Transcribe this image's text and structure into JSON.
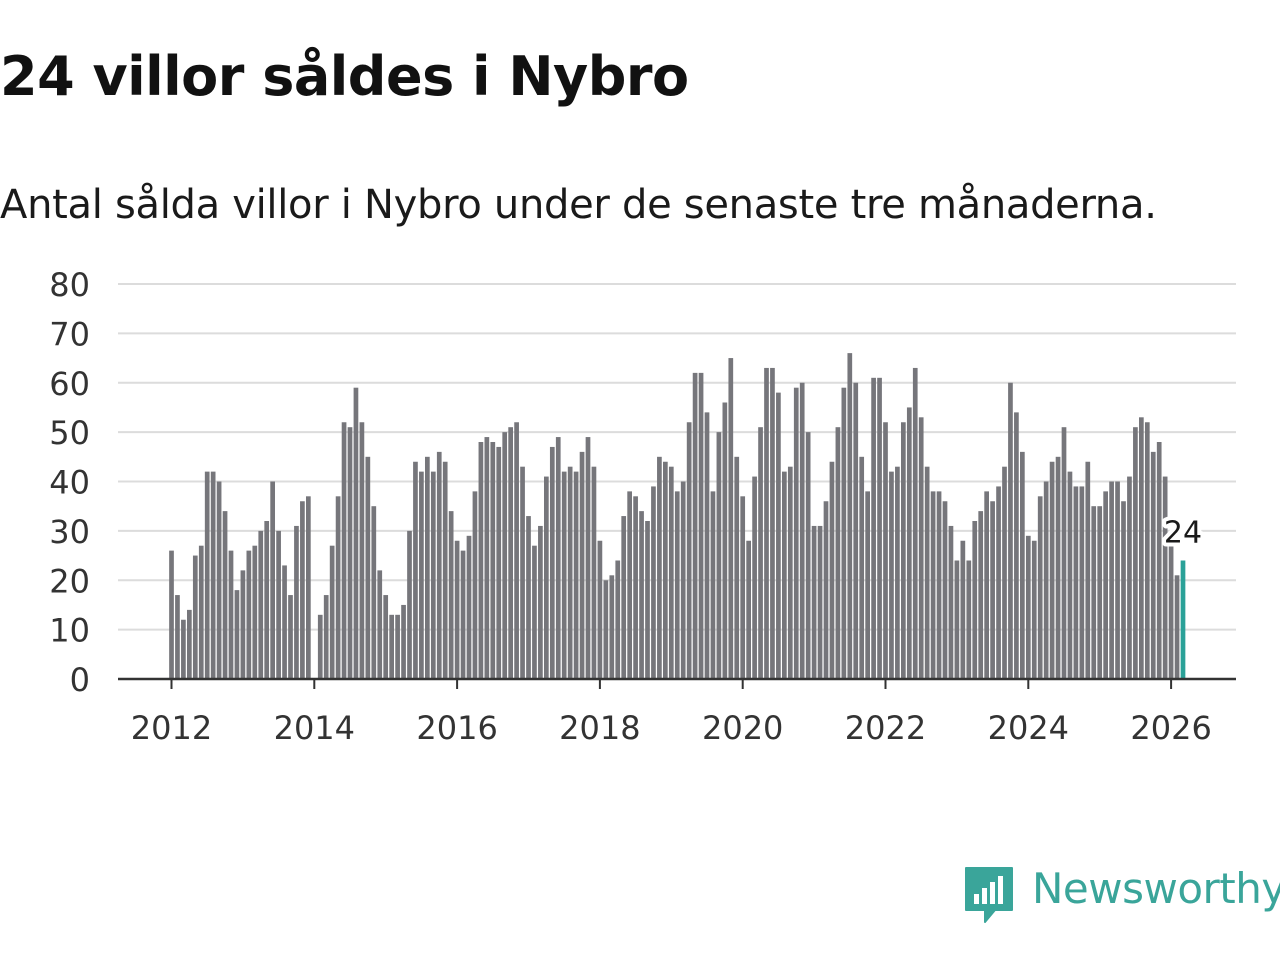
{
  "title": "24 villor såldes i Nybro",
  "subtitle": "Antal sålda villor i Nybro under de senaste tre månaderna.",
  "brand": {
    "name": "Newsworthy",
    "color": "#3aa59a"
  },
  "chart_data": {
    "type": "bar",
    "title": "24 villor såldes i Nybro",
    "subtitle": "Antal sålda villor i Nybro under de senaste tre månaderna.",
    "xlabel": "",
    "ylabel": "",
    "ylim": [
      0,
      80
    ],
    "yticks": [
      "0",
      "10",
      "20",
      "30",
      "40",
      "50",
      "60",
      "70",
      "80"
    ],
    "xticks": [
      "2012",
      "2014",
      "2016",
      "2018",
      "2020",
      "2022",
      "2024",
      "2026"
    ],
    "start": "2012-01",
    "bar_color": "#76767b",
    "highlight_color": "#2aa198",
    "highlight_label": "24",
    "values": [
      26,
      17,
      12,
      14,
      25,
      27,
      42,
      42,
      40,
      34,
      26,
      18,
      22,
      26,
      27,
      30,
      32,
      40,
      30,
      23,
      17,
      31,
      36,
      37,
      0,
      13,
      17,
      27,
      37,
      52,
      51,
      59,
      52,
      45,
      35,
      22,
      17,
      13,
      13,
      15,
      30,
      44,
      42,
      45,
      42,
      46,
      44,
      34,
      28,
      26,
      29,
      38,
      48,
      49,
      48,
      47,
      50,
      51,
      52,
      43,
      33,
      27,
      31,
      41,
      47,
      49,
      42,
      43,
      42,
      46,
      49,
      43,
      28,
      20,
      21,
      24,
      33,
      38,
      37,
      34,
      32,
      39,
      45,
      44,
      43,
      38,
      40,
      52,
      62,
      62,
      54,
      38,
      50,
      56,
      65,
      45,
      37,
      28,
      41,
      51,
      63,
      63,
      58,
      42,
      43,
      59,
      60,
      50,
      31,
      31,
      36,
      44,
      51,
      59,
      66,
      60,
      45,
      38,
      61,
      61,
      52,
      42,
      43,
      52,
      55,
      63,
      53,
      43,
      38,
      38,
      36,
      31,
      24,
      28,
      24,
      32,
      34,
      38,
      36,
      39,
      43,
      60,
      54,
      46,
      29,
      28,
      37,
      40,
      44,
      45,
      51,
      42,
      39,
      39,
      44,
      35,
      35,
      38,
      40,
      40,
      36,
      41,
      51,
      53,
      52,
      46,
      48,
      41,
      27,
      21,
      24
    ]
  }
}
